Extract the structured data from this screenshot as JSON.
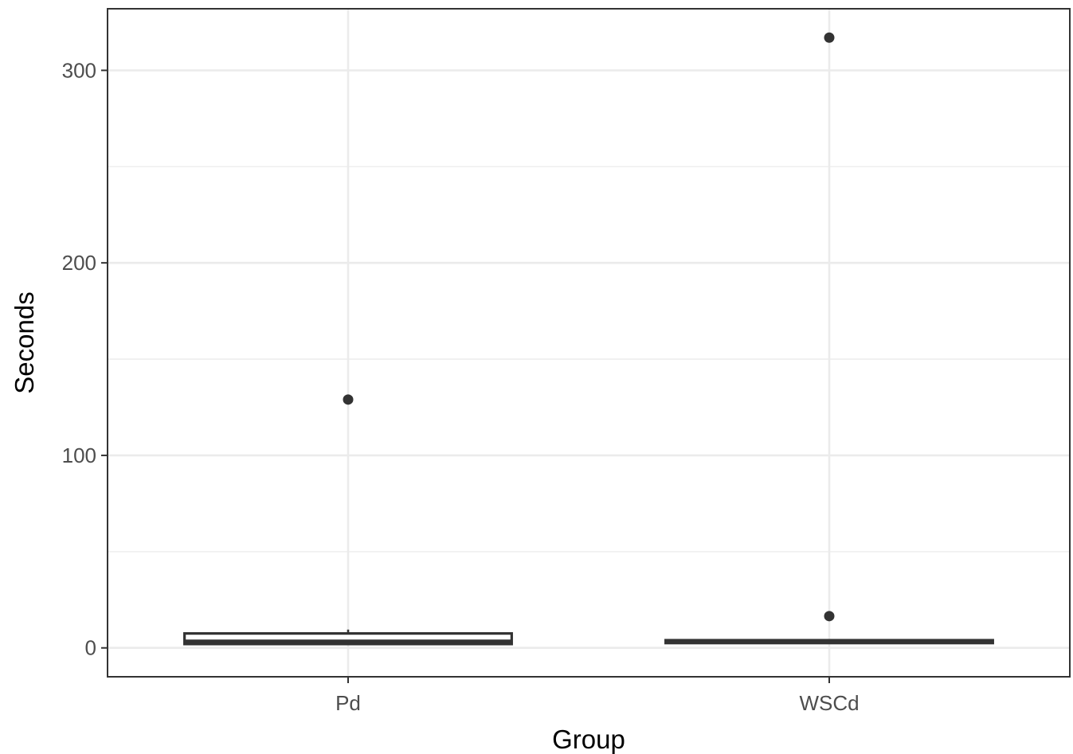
{
  "chart_data": {
    "type": "boxplot",
    "xlabel": "Group",
    "ylabel": "Seconds",
    "categories": [
      "Pd",
      "WSCd"
    ],
    "ylim": [
      -15,
      332
    ],
    "y_ticks": [
      0,
      100,
      200,
      300
    ],
    "y_tick_labels": [
      "0",
      "100",
      "200",
      "300"
    ],
    "grid": true,
    "colors": {
      "background": "#ffffff",
      "grid": "#ebebeb",
      "border": "#333333",
      "box_stroke": "#333333",
      "box_fill": "#ffffff",
      "outlier": "#333333"
    },
    "series": [
      {
        "category": "Pd",
        "min": 1.5,
        "q1": 2,
        "median": 3,
        "q3": 7.5,
        "max": 9.5,
        "outliers": [
          129
        ]
      },
      {
        "category": "WSCd",
        "min": 2,
        "q1": 2.5,
        "median": 3.3,
        "q3": 4,
        "max": 4.5,
        "outliers": [
          16.5,
          317
        ]
      }
    ]
  }
}
